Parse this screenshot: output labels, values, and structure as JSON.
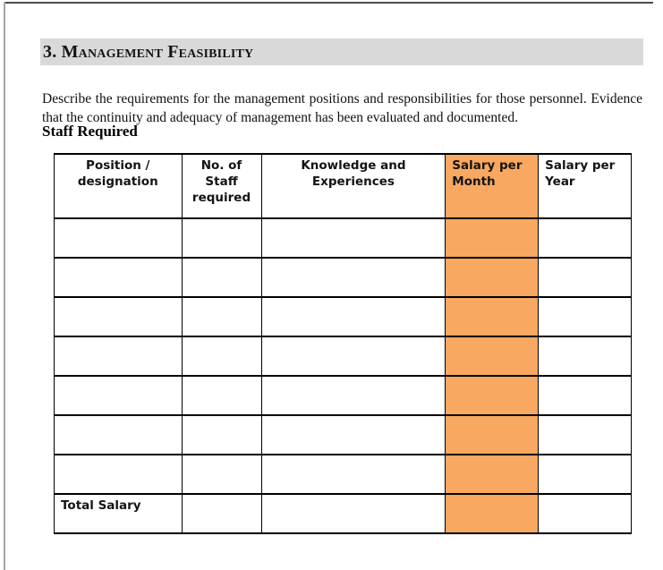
{
  "document": {
    "section_title": "3. Management Feasibility",
    "description": "Describe the requirements for the management positions and responsibilities for those personnel. Evidence that the continuity and adequacy of management has been evaluated and documented.",
    "subheading": "Staff Required"
  },
  "table": {
    "columns": [
      {
        "label": "Position /\ndesignation",
        "align": "center",
        "highlight": false,
        "width_pct": 22.1
      },
      {
        "label": "No. of\nStaff\nrequired",
        "align": "center",
        "highlight": false,
        "width_pct": 13.8
      },
      {
        "label": "Knowledge and\nExperiences",
        "align": "center",
        "highlight": false,
        "width_pct": 31.9
      },
      {
        "label": "Salary per\nMonth",
        "align": "left",
        "highlight": true,
        "width_pct": 16.1
      },
      {
        "label": "Salary per\nYear",
        "align": "left",
        "highlight": false,
        "width_pct": 16.1
      }
    ],
    "empty_row_count": 7,
    "total_row": {
      "label": "Total Salary"
    }
  },
  "colors": {
    "highlight_orange": "#F8A860",
    "title_bar_gray": "#D9D9D9",
    "table_border": "#000000"
  }
}
